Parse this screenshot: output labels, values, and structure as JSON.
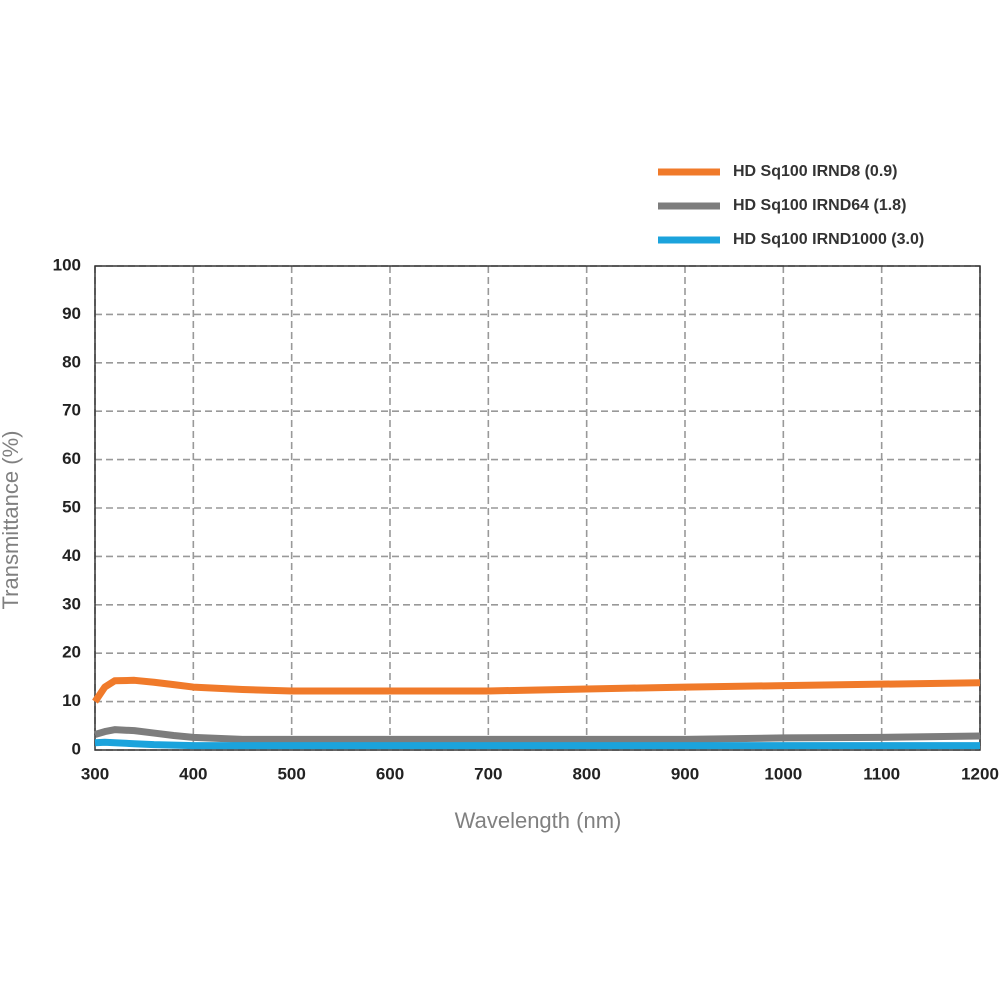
{
  "chart_data": {
    "type": "line",
    "xlabel": "Wavelength (nm)",
    "ylabel": "Transmittance (%)",
    "x": [
      300,
      310,
      320,
      340,
      360,
      380,
      400,
      450,
      500,
      600,
      700,
      800,
      900,
      1000,
      1100,
      1200
    ],
    "series": [
      {
        "name": "HD Sq100 IRND8 (0.9)",
        "color": "#f07a2a",
        "values": [
          10,
          13,
          14.3,
          14.4,
          14,
          13.5,
          13,
          12.5,
          12.2,
          12.2,
          12.2,
          12.6,
          13,
          13.3,
          13.6,
          13.9
        ]
      },
      {
        "name": "HD Sq100 IRND64 (1.8)",
        "color": "#7d7d7d",
        "values": [
          3.2,
          3.8,
          4.2,
          4,
          3.5,
          3,
          2.6,
          2.2,
          2.2,
          2.2,
          2.2,
          2.2,
          2.2,
          2.5,
          2.6,
          2.9
        ]
      },
      {
        "name": "HD Sq100 IRND1000 (3.0)",
        "color": "#1ba3dc",
        "values": [
          1.5,
          1.6,
          1.5,
          1.3,
          1.1,
          1,
          0.9,
          0.9,
          0.9,
          0.9,
          0.9,
          0.9,
          0.9,
          0.9,
          0.9,
          0.9
        ]
      }
    ],
    "xlim": [
      300,
      1200
    ],
    "ylim": [
      0,
      100
    ],
    "xticks": [
      300,
      400,
      500,
      600,
      700,
      800,
      900,
      1000,
      1100,
      1200
    ],
    "yticks": [
      0,
      10,
      20,
      30,
      40,
      50,
      60,
      70,
      80,
      90,
      100
    ],
    "grid": true,
    "legend": "top-right"
  }
}
